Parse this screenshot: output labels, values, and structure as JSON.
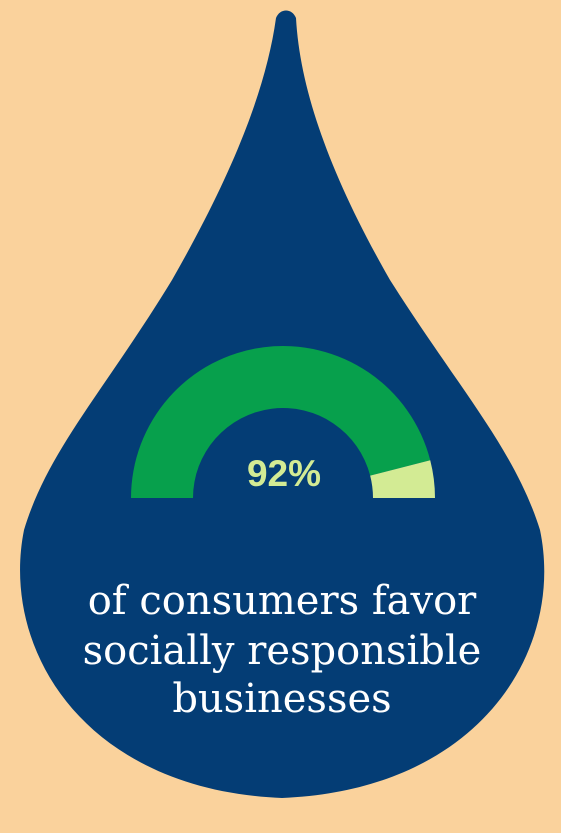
{
  "colors": {
    "background": "#FAD29C",
    "drop": "#043D75",
    "gauge_filled": "#07A04C",
    "gauge_remaining": "#D3EB94",
    "value_text": "#D3EB94",
    "caption_text": "#FFFFFF"
  },
  "chart_data": {
    "type": "gauge",
    "value": 92,
    "max": 100,
    "unit": "%",
    "value_label": "92%",
    "caption": [
      "of consumers favor",
      "socially responsible",
      "businesses"
    ]
  }
}
